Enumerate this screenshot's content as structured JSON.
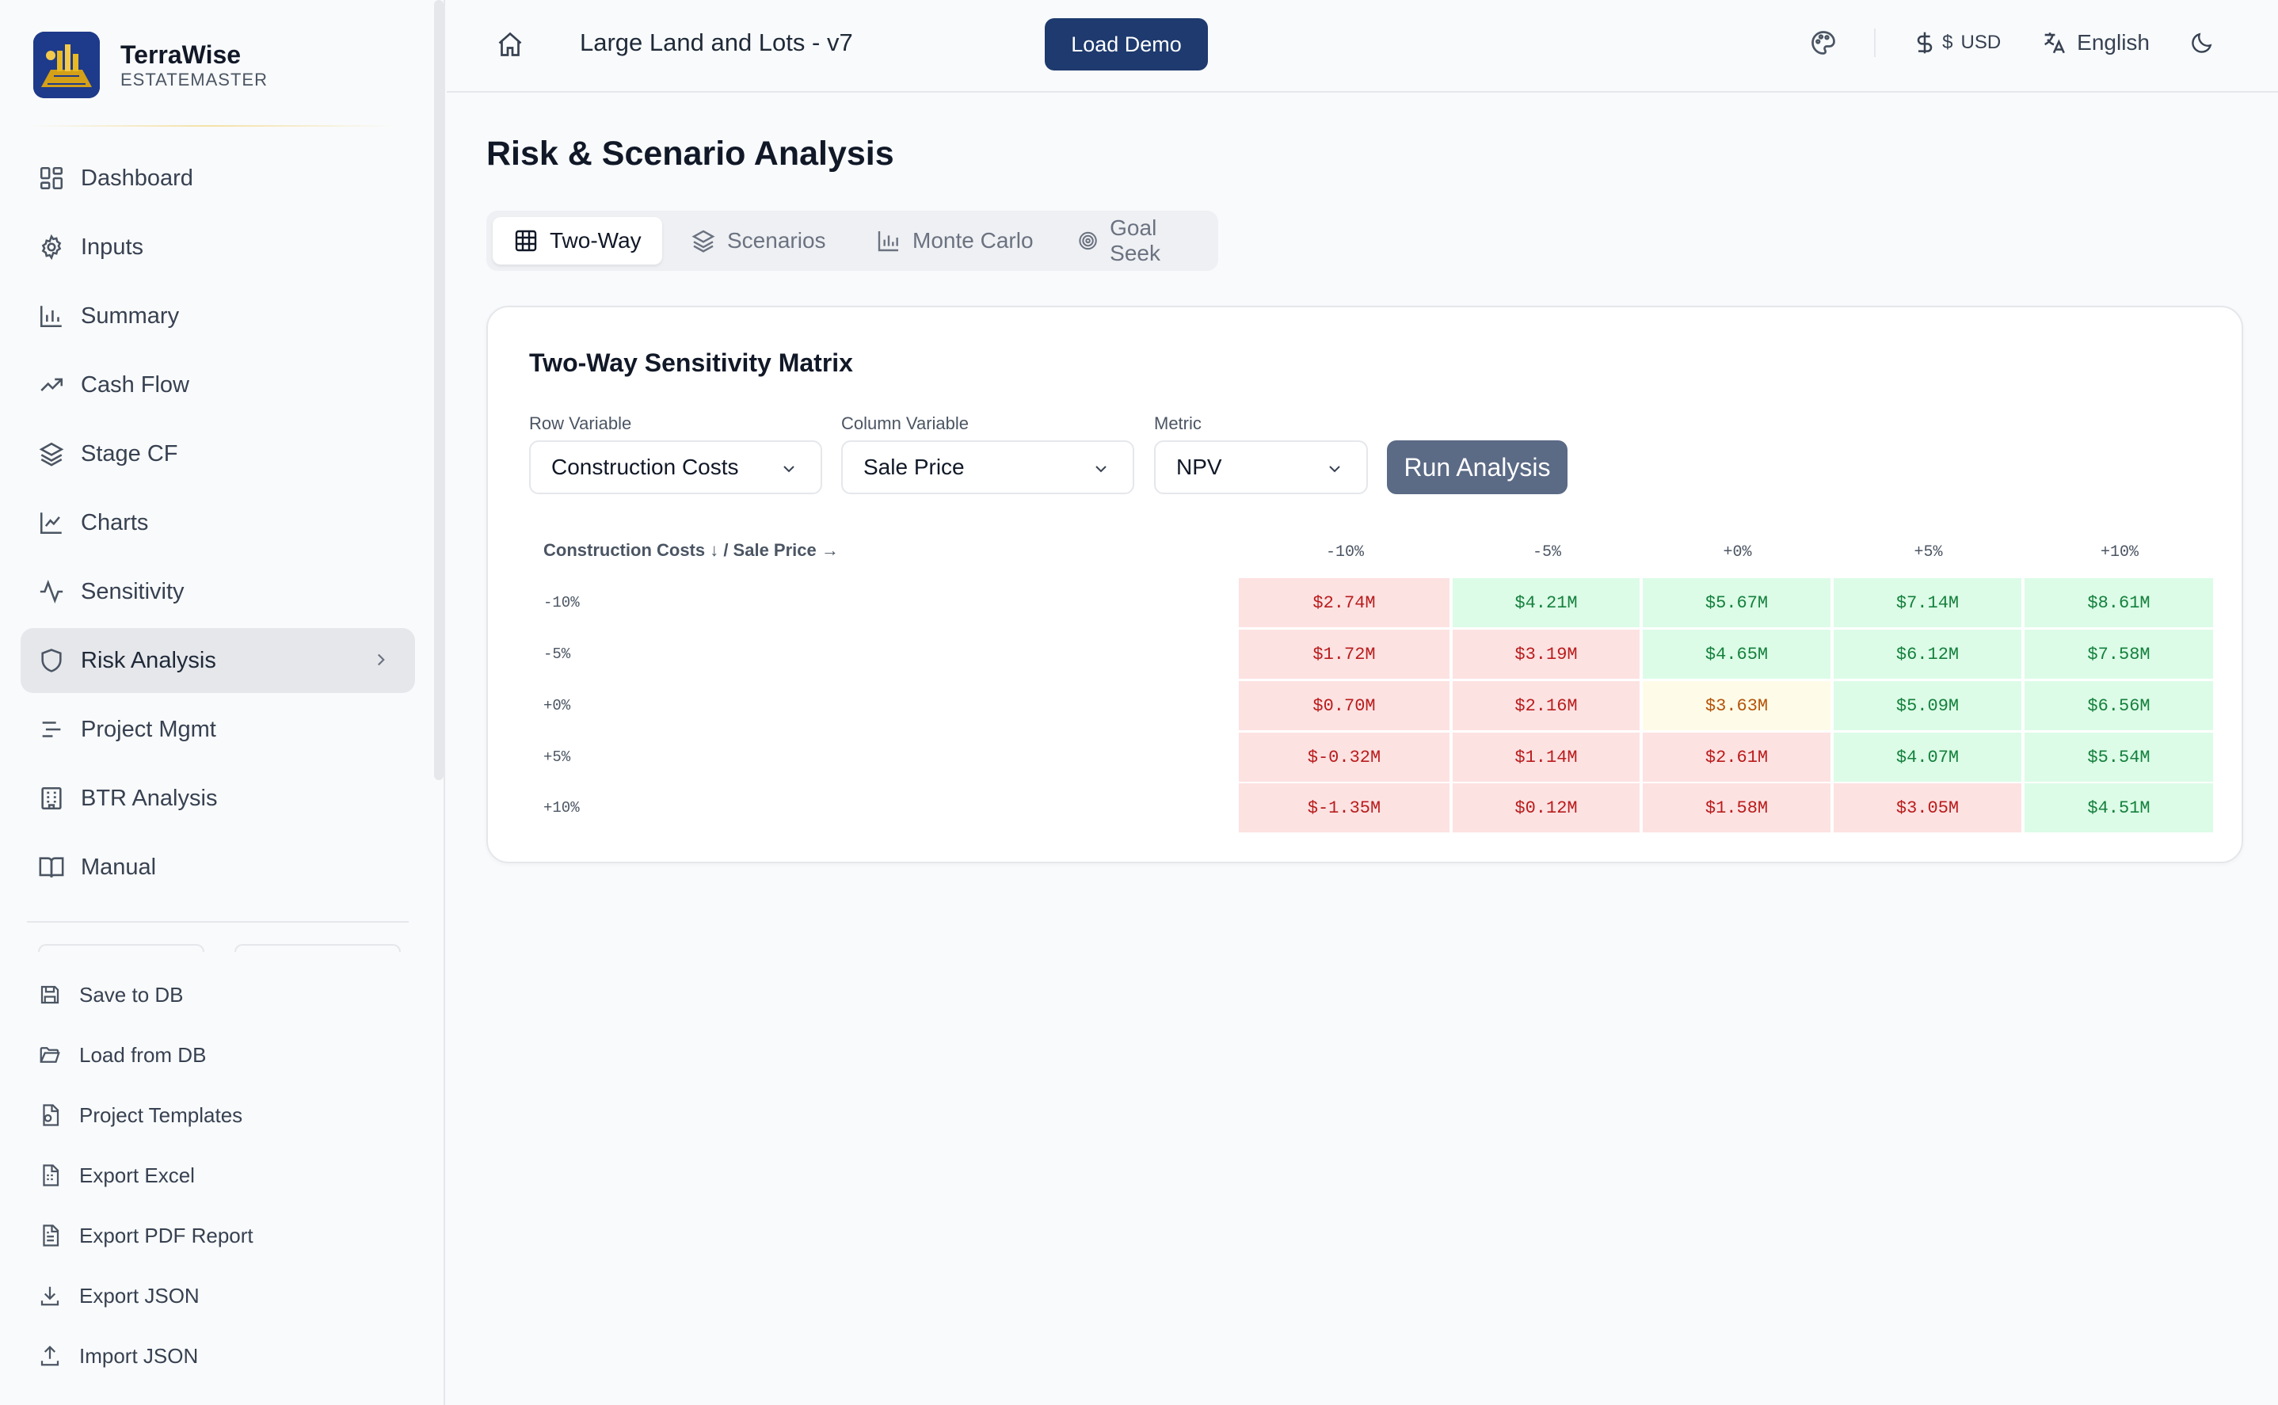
{
  "brand": {
    "name": "TerraWise",
    "subtitle": "ESTATEMASTER"
  },
  "sidebar": {
    "nav": [
      {
        "label": "Dashboard",
        "icon": "grid-icon"
      },
      {
        "label": "Inputs",
        "icon": "gear-icon"
      },
      {
        "label": "Summary",
        "icon": "bar-chart-icon"
      },
      {
        "label": "Cash Flow",
        "icon": "trending-up-icon"
      },
      {
        "label": "Stage CF",
        "icon": "layers-icon"
      },
      {
        "label": "Charts",
        "icon": "line-chart-icon"
      },
      {
        "label": "Sensitivity",
        "icon": "activity-icon"
      },
      {
        "label": "Risk Analysis",
        "icon": "shield-icon",
        "active": true
      },
      {
        "label": "Project Mgmt",
        "icon": "list-icon"
      },
      {
        "label": "BTR Analysis",
        "icon": "building-icon"
      },
      {
        "label": "Manual",
        "icon": "book-icon"
      }
    ],
    "actions": [
      {
        "label": "Save to DB",
        "icon": "save-icon"
      },
      {
        "label": "Load from DB",
        "icon": "folder-open-icon"
      },
      {
        "label": "Project Templates",
        "icon": "template-icon"
      },
      {
        "label": "Export Excel",
        "icon": "spreadsheet-icon"
      },
      {
        "label": "Export PDF Report",
        "icon": "file-text-icon"
      },
      {
        "label": "Export JSON",
        "icon": "download-icon"
      },
      {
        "label": "Import JSON",
        "icon": "upload-icon"
      }
    ]
  },
  "header": {
    "project_title": "Large Land and Lots - v7",
    "load_demo_label": "Load Demo",
    "currency_symbol": "$",
    "currency_code": "USD",
    "language": "English"
  },
  "page": {
    "title": "Risk & Scenario Analysis",
    "tabs": [
      {
        "label": "Two-Way",
        "icon": "table-icon",
        "active": true
      },
      {
        "label": "Scenarios",
        "icon": "layers-icon"
      },
      {
        "label": "Monte Carlo",
        "icon": "bar-chart-icon"
      },
      {
        "label": "Goal Seek",
        "icon": "target-icon"
      }
    ]
  },
  "matrix_card": {
    "title": "Two-Way Sensitivity Matrix",
    "row_variable_label": "Row Variable",
    "row_variable_value": "Construction Costs",
    "column_variable_label": "Column Variable",
    "column_variable_value": "Sale Price",
    "metric_label": "Metric",
    "metric_value": "NPV",
    "run_label": "Run Analysis",
    "corner_label": "Construction Costs ↓ / Sale Price →",
    "columns": [
      "-10%",
      "-5%",
      "+0%",
      "+5%",
      "+10%"
    ],
    "rows": [
      {
        "label": "-10%",
        "cells": [
          {
            "v": "$2.74M",
            "s": "neg"
          },
          {
            "v": "$4.21M",
            "s": "pos"
          },
          {
            "v": "$5.67M",
            "s": "pos"
          },
          {
            "v": "$7.14M",
            "s": "pos"
          },
          {
            "v": "$8.61M",
            "s": "pos"
          }
        ]
      },
      {
        "label": "-5%",
        "cells": [
          {
            "v": "$1.72M",
            "s": "neg"
          },
          {
            "v": "$3.19M",
            "s": "neg"
          },
          {
            "v": "$4.65M",
            "s": "pos"
          },
          {
            "v": "$6.12M",
            "s": "pos"
          },
          {
            "v": "$7.58M",
            "s": "pos"
          }
        ]
      },
      {
        "label": "+0%",
        "cells": [
          {
            "v": "$0.70M",
            "s": "neg"
          },
          {
            "v": "$2.16M",
            "s": "neg"
          },
          {
            "v": "$3.63M",
            "s": "neu"
          },
          {
            "v": "$5.09M",
            "s": "pos"
          },
          {
            "v": "$6.56M",
            "s": "pos"
          }
        ]
      },
      {
        "label": "+5%",
        "cells": [
          {
            "v": "$-0.32M",
            "s": "neg"
          },
          {
            "v": "$1.14M",
            "s": "neg"
          },
          {
            "v": "$2.61M",
            "s": "neg"
          },
          {
            "v": "$4.07M",
            "s": "pos"
          },
          {
            "v": "$5.54M",
            "s": "pos"
          }
        ]
      },
      {
        "label": "+10%",
        "cells": [
          {
            "v": "$-1.35M",
            "s": "neg"
          },
          {
            "v": "$0.12M",
            "s": "neg"
          },
          {
            "v": "$1.58M",
            "s": "neg"
          },
          {
            "v": "$3.05M",
            "s": "neg"
          },
          {
            "v": "$4.51M",
            "s": "pos"
          }
        ]
      }
    ]
  },
  "colors": {
    "accent": "#1e3a6e",
    "run_button": "#5b6a85",
    "negative_bg": "#fde2e2",
    "positive_bg": "#dcfce7",
    "neutral_bg": "#fefce8"
  }
}
